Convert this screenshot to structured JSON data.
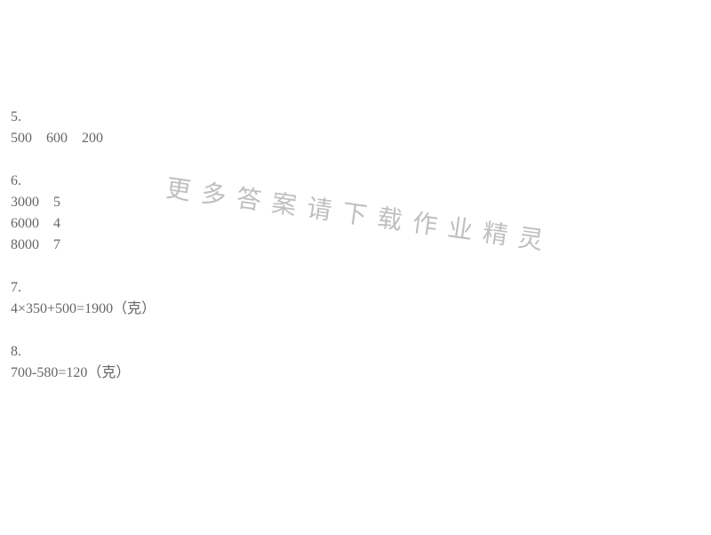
{
  "text_color": "#666666",
  "background_color": "#ffffff",
  "watermark_color": "#bfbfbf",
  "font_size": 16,
  "watermark_font_size": 28,
  "watermark_rotation_deg": 8,
  "watermark": "更多答案请下载作业精灵",
  "sections": [
    {
      "heading": "5.",
      "lines": [
        "500    600    200"
      ]
    },
    {
      "heading": "6.",
      "lines": [
        "3000    5",
        "6000    4",
        "8000    7"
      ]
    },
    {
      "heading": "7.",
      "lines": [
        "4×350+500=1900（克）"
      ]
    },
    {
      "heading": "8.",
      "lines": [
        "700-580=120（克）"
      ]
    }
  ]
}
